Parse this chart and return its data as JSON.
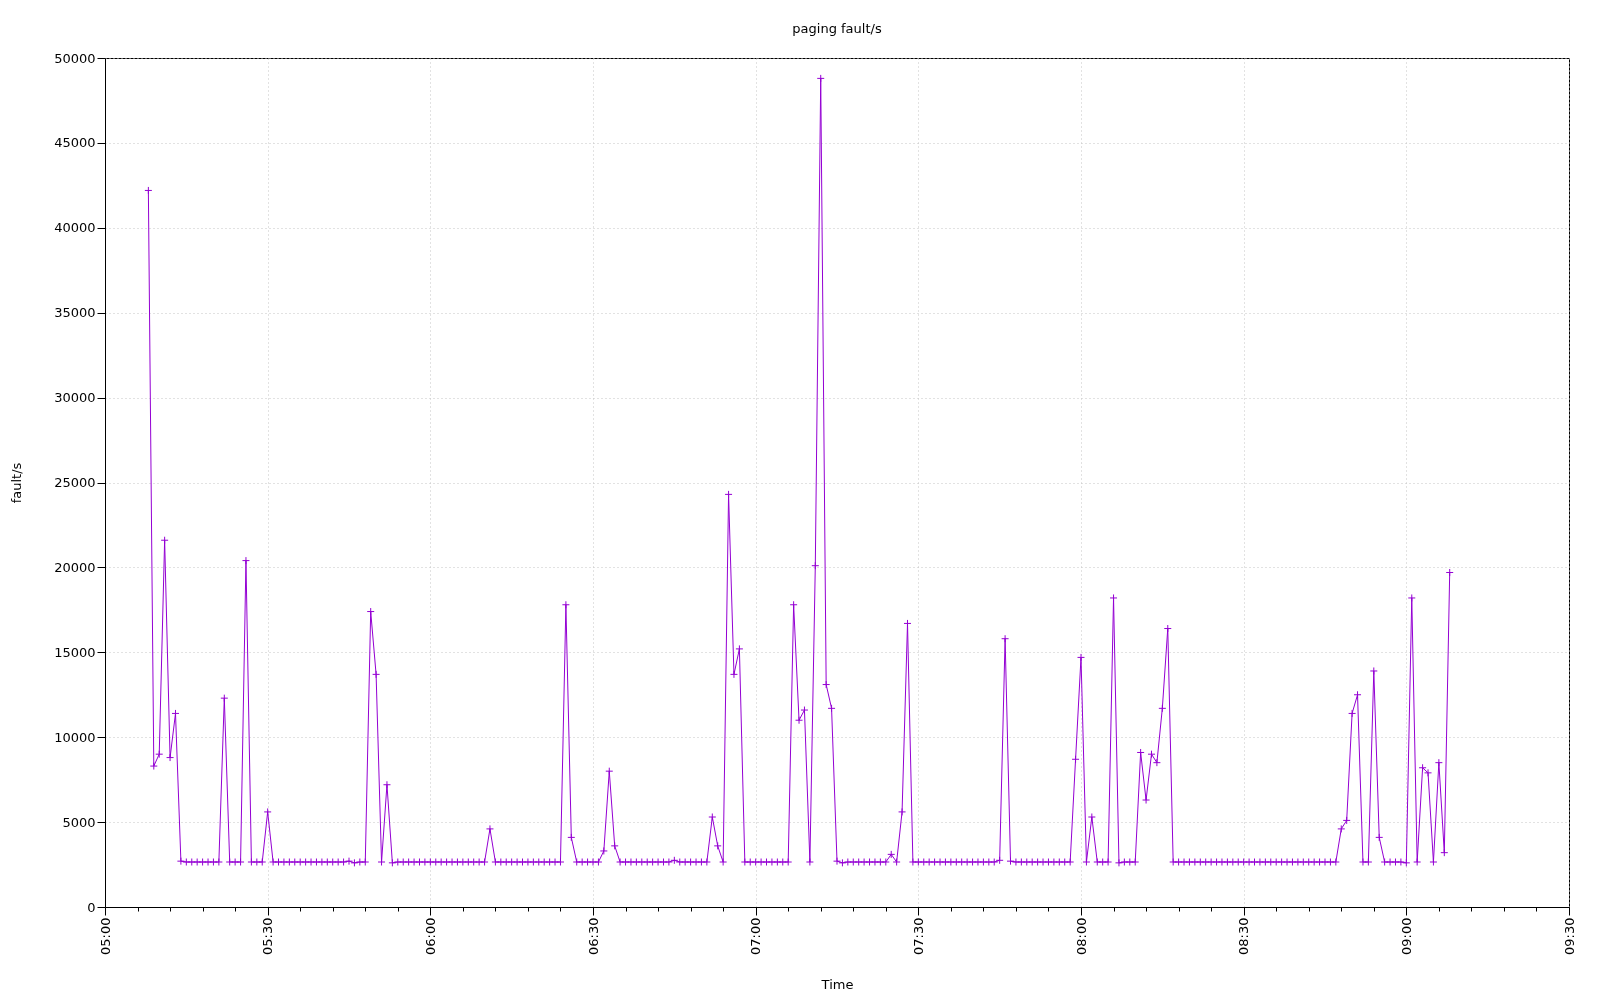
{
  "chart_data": {
    "type": "line",
    "title": "paging  fault/s",
    "xlabel": "Time",
    "ylabel": "fault/s",
    "color": "#9400d3",
    "marker": "cross",
    "grid": true,
    "xlim": [
      5,
      9.5
    ],
    "xticks": [
      {
        "value": 5,
        "label": "05:00"
      },
      {
        "value": 5.1,
        "label": null
      },
      {
        "value": 5.2,
        "label": null
      },
      {
        "value": 5.3,
        "label": null
      },
      {
        "value": 5.4,
        "label": null
      },
      {
        "value": 5.5,
        "label": "05:30"
      },
      {
        "value": 5.6,
        "label": null
      },
      {
        "value": 5.7,
        "label": null
      },
      {
        "value": 5.8,
        "label": null
      },
      {
        "value": 5.9,
        "label": null
      },
      {
        "value": 6,
        "label": "06:00"
      },
      {
        "value": 6.1,
        "label": null
      },
      {
        "value": 6.2,
        "label": null
      },
      {
        "value": 6.3,
        "label": null
      },
      {
        "value": 6.4,
        "label": null
      },
      {
        "value": 6.5,
        "label": "06:30"
      },
      {
        "value": 6.6,
        "label": null
      },
      {
        "value": 6.7,
        "label": null
      },
      {
        "value": 6.8,
        "label": null
      },
      {
        "value": 6.9,
        "label": null
      },
      {
        "value": 7,
        "label": "07:00"
      },
      {
        "value": 7.1,
        "label": null
      },
      {
        "value": 7.2,
        "label": null
      },
      {
        "value": 7.3,
        "label": null
      },
      {
        "value": 7.4,
        "label": null
      },
      {
        "value": 7.5,
        "label": "07:30"
      },
      {
        "value": 7.6,
        "label": null
      },
      {
        "value": 7.7,
        "label": null
      },
      {
        "value": 7.8,
        "label": null
      },
      {
        "value": 7.9,
        "label": null
      },
      {
        "value": 8,
        "label": "08:00"
      },
      {
        "value": 8.1,
        "label": null
      },
      {
        "value": 8.2,
        "label": null
      },
      {
        "value": 8.3,
        "label": null
      },
      {
        "value": 8.4,
        "label": null
      },
      {
        "value": 8.5,
        "label": "08:30"
      },
      {
        "value": 8.6,
        "label": null
      },
      {
        "value": 8.7,
        "label": null
      },
      {
        "value": 8.8,
        "label": null
      },
      {
        "value": 8.9,
        "label": null
      },
      {
        "value": 9,
        "label": "09:00"
      },
      {
        "value": 9.1,
        "label": null
      },
      {
        "value": 9.2,
        "label": null
      },
      {
        "value": 9.3,
        "label": null
      },
      {
        "value": 9.4,
        "label": null
      },
      {
        "value": 9.5,
        "label": "09:30"
      }
    ],
    "ylim": [
      0,
      50000
    ],
    "yticks": [
      0,
      5000,
      10000,
      15000,
      20000,
      25000,
      30000,
      35000,
      40000,
      45000,
      50000
    ],
    "x": [
      5.1333,
      5.15,
      5.1667,
      5.1833,
      5.2,
      5.2167,
      5.2333,
      5.25,
      5.2667,
      5.2833,
      5.3,
      5.3167,
      5.3333,
      5.35,
      5.3667,
      5.3833,
      5.4,
      5.4167,
      5.4333,
      5.45,
      5.4667,
      5.4833,
      5.5,
      5.5167,
      5.5333,
      5.55,
      5.5667,
      5.5833,
      5.6,
      5.6167,
      5.6333,
      5.65,
      5.6667,
      5.6833,
      5.7,
      5.7167,
      5.7333,
      5.75,
      5.7667,
      5.7833,
      5.8,
      5.8167,
      5.8333,
      5.85,
      5.8667,
      5.8833,
      5.9,
      5.9167,
      5.9333,
      5.95,
      5.9667,
      5.9833,
      6,
      6.0167,
      6.0333,
      6.05,
      6.0667,
      6.0833,
      6.1,
      6.1167,
      6.1333,
      6.15,
      6.1667,
      6.1833,
      6.2,
      6.2167,
      6.2333,
      6.25,
      6.2667,
      6.2833,
      6.3,
      6.3167,
      6.3333,
      6.35,
      6.3667,
      6.3833,
      6.4,
      6.4167,
      6.4333,
      6.45,
      6.4667,
      6.4833,
      6.5,
      6.5167,
      6.5333,
      6.55,
      6.5667,
      6.5833,
      6.6,
      6.6167,
      6.6333,
      6.65,
      6.6667,
      6.6833,
      6.7,
      6.7167,
      6.7333,
      6.75,
      6.7667,
      6.7833,
      6.8,
      6.8167,
      6.8333,
      6.85,
      6.8667,
      6.8833,
      6.9,
      6.9167,
      6.9333,
      6.95,
      6.9667,
      6.9833,
      7,
      7.0167,
      7.0333,
      7.05,
      7.0667,
      7.0833,
      7.1,
      7.1167,
      7.1333,
      7.15,
      7.1667,
      7.1833,
      7.2,
      7.2167,
      7.2333,
      7.25,
      7.2667,
      7.2833,
      7.3,
      7.3167,
      7.3333,
      7.35,
      7.3667,
      7.3833,
      7.4,
      7.4167,
      7.4333,
      7.45,
      7.4667,
      7.4833,
      7.5,
      7.5167,
      7.5333,
      7.55,
      7.5667,
      7.5833,
      7.6,
      7.6167,
      7.6333,
      7.65,
      7.6667,
      7.6833,
      7.7,
      7.7167,
      7.7333,
      7.75,
      7.7667,
      7.7833,
      7.8,
      7.8167,
      7.8333,
      7.85,
      7.8667,
      7.8833,
      7.9,
      7.9167,
      7.9333,
      7.95,
      7.9667,
      7.9833,
      8,
      8.0167,
      8.0333,
      8.05,
      8.0667,
      8.0833,
      8.1,
      8.1167,
      8.1333,
      8.15,
      8.1667,
      8.1833,
      8.2,
      8.2167,
      8.2333,
      8.25,
      8.2667,
      8.2833,
      8.3,
      8.3167,
      8.3333,
      8.35,
      8.3667,
      8.3833,
      8.4,
      8.4167,
      8.4333,
      8.45,
      8.4667,
      8.4833,
      8.5,
      8.5167,
      8.5333,
      8.55,
      8.5667,
      8.5833,
      8.6,
      8.6167,
      8.6333,
      8.65,
      8.6667,
      8.6833,
      8.7,
      8.7167,
      8.7333,
      8.75,
      8.7667,
      8.7833,
      8.8,
      8.8167,
      8.8333,
      8.85,
      8.8667,
      8.8833,
      8.9,
      8.9167,
      8.9333,
      8.95,
      8.9667,
      8.9833,
      9,
      9.0167,
      9.0333,
      9.05,
      9.0667,
      9.0833,
      9.1,
      9.1167,
      9.1333
    ],
    "values": [
      42200,
      8300,
      9000,
      21600,
      8800,
      11400,
      2700,
      2650,
      2650,
      2650,
      2650,
      2650,
      2650,
      2650,
      12300,
      2650,
      2650,
      2650,
      20400,
      2650,
      2650,
      2650,
      5600,
      2650,
      2650,
      2650,
      2650,
      2650,
      2650,
      2650,
      2650,
      2650,
      2650,
      2650,
      2650,
      2650,
      2650,
      2700,
      2600,
      2650,
      2650,
      17400,
      13700,
      2650,
      7200,
      2600,
      2650,
      2650,
      2650,
      2650,
      2650,
      2650,
      2650,
      2650,
      2650,
      2650,
      2650,
      2650,
      2650,
      2650,
      2650,
      2650,
      2650,
      4600,
      2650,
      2650,
      2650,
      2650,
      2650,
      2650,
      2650,
      2650,
      2650,
      2650,
      2650,
      2650,
      2650,
      17800,
      4100,
      2650,
      2650,
      2650,
      2650,
      2650,
      3300,
      8000,
      3600,
      2650,
      2650,
      2650,
      2650,
      2650,
      2650,
      2650,
      2650,
      2650,
      2650,
      2750,
      2650,
      2650,
      2650,
      2650,
      2650,
      2650,
      5300,
      3600,
      2650,
      24300,
      13700,
      15200,
      2650,
      2650,
      2650,
      2650,
      2650,
      2650,
      2650,
      2650,
      2650,
      17800,
      11000,
      11600,
      2650,
      20100,
      48800,
      13100,
      11700,
      2700,
      2600,
      2650,
      2650,
      2650,
      2650,
      2650,
      2650,
      2650,
      2650,
      3100,
      2650,
      5600,
      16700,
      2650,
      2650,
      2650,
      2650,
      2650,
      2650,
      2650,
      2650,
      2650,
      2650,
      2650,
      2650,
      2650,
      2650,
      2650,
      2650,
      2750,
      15800,
      2700,
      2650,
      2650,
      2650,
      2650,
      2650,
      2650,
      2650,
      2650,
      2650,
      2650,
      2650,
      8700,
      14700,
      2650,
      5300,
      2650,
      2650,
      2650,
      18200,
      2600,
      2650,
      2650,
      2650,
      9100,
      6300,
      9000,
      8500,
      11700,
      16400,
      2650,
      2650,
      2650,
      2650,
      2650,
      2650,
      2650,
      2650,
      2650,
      2650,
      2650,
      2650,
      2650,
      2650,
      2650,
      2650,
      2650,
      2650,
      2650,
      2650,
      2650,
      2650,
      2650,
      2650,
      2650,
      2650,
      2650,
      2650,
      2650,
      2650,
      2650,
      4600,
      5100,
      11400,
      12500,
      2650,
      2650,
      13900,
      4100,
      2650,
      2650,
      2650,
      2650,
      2600,
      18200,
      2650,
      8200,
      7900,
      2650,
      8500,
      3200,
      19700
    ]
  }
}
